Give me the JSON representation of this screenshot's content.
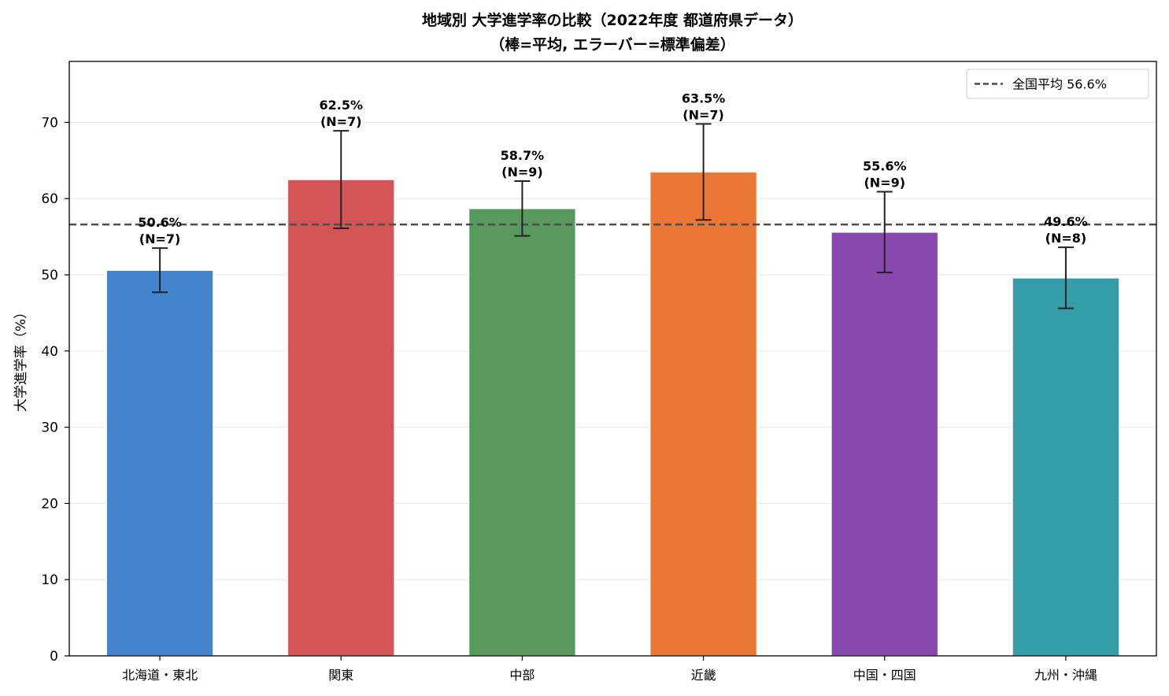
{
  "chart_data": {
    "type": "bar",
    "title_line1": "地域別 大学進学率の比較（2022年度 都道府県データ）",
    "title_line2": "（棒=平均, エラーバー=標準偏差）",
    "xlabel": "",
    "ylabel": "大学進学率（%）",
    "ylim": [
      0,
      78
    ],
    "yticks": [
      0,
      10,
      20,
      30,
      40,
      50,
      60,
      70
    ],
    "grid": "y",
    "categories": [
      "北海道・東北",
      "関東",
      "中部",
      "近畿",
      "中国・四国",
      "九州・沖縄"
    ],
    "values": [
      50.6,
      62.5,
      58.7,
      63.5,
      55.6,
      49.6
    ],
    "errors": [
      2.9,
      6.4,
      3.6,
      6.3,
      5.3,
      4.0
    ],
    "n": [
      "(N=7)",
      "(N=7)",
      "(N=9)",
      "(N=7)",
      "(N=9)",
      "(N=8)"
    ],
    "value_labels": [
      "50.6%",
      "62.5%",
      "58.7%",
      "63.5%",
      "55.6%",
      "49.6%"
    ],
    "colors": [
      "#4285cc",
      "#d35457",
      "#589a5d",
      "#ec7635",
      "#8749ad",
      "#349da7"
    ],
    "reference_line": {
      "value": 56.6,
      "label": "全国平均 56.6%",
      "color": "#4d4d4d",
      "style": "dashed"
    },
    "legend_placement": "top-right"
  }
}
